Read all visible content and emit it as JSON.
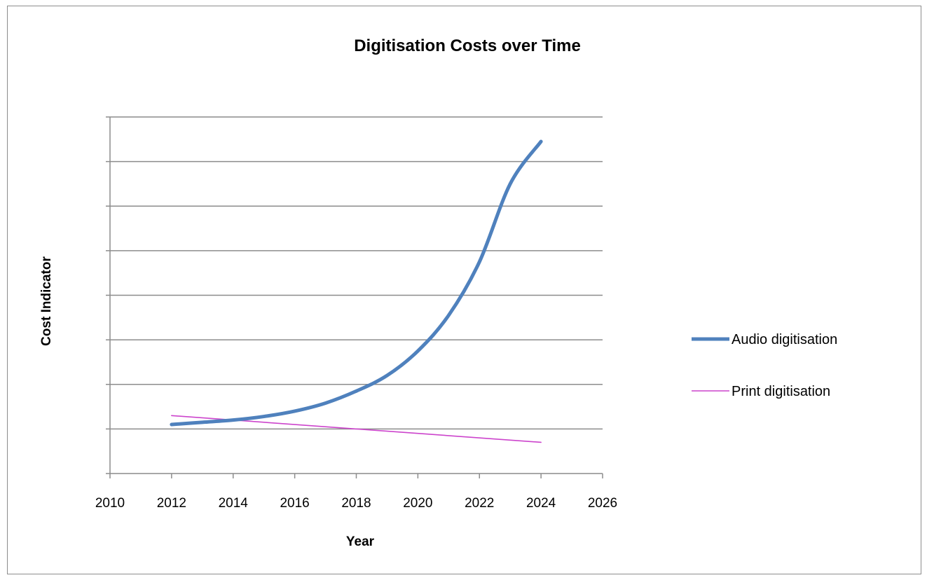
{
  "chart_data": {
    "type": "line",
    "title": "Digitisation Costs over Time",
    "xlabel": "Year",
    "ylabel": "Cost Indicator",
    "xlim": [
      2010,
      2026
    ],
    "x_ticks": [
      2010,
      2012,
      2014,
      2016,
      2018,
      2020,
      2022,
      2024,
      2026
    ],
    "ylim": [
      0,
      8
    ],
    "y_gridlines": [
      1,
      2,
      3,
      4,
      5,
      6,
      7,
      8
    ],
    "y_tick_labels_shown": false,
    "grid": true,
    "legend_position": "right",
    "series": [
      {
        "name": "Audio digitisation",
        "color": "#4f81bd",
        "x": [
          2012,
          2013,
          2014,
          2015,
          2016,
          2017,
          2018,
          2019,
          2020,
          2021,
          2022,
          2023,
          2024
        ],
        "values": [
          1.1,
          1.15,
          1.2,
          1.28,
          1.4,
          1.58,
          1.85,
          2.2,
          2.75,
          3.55,
          4.75,
          6.5,
          7.45
        ]
      },
      {
        "name": "Print digitisation",
        "color": "#cc44cc",
        "x": [
          2012,
          2024
        ],
        "values": [
          1.3,
          0.7
        ]
      }
    ]
  }
}
